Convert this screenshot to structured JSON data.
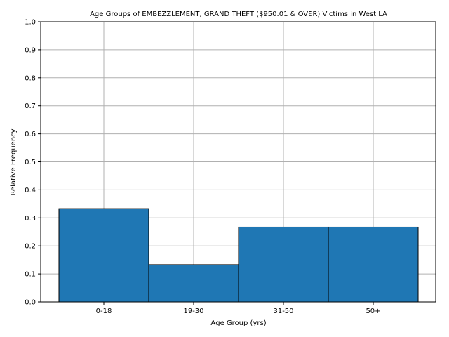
{
  "chart_data": {
    "type": "bar",
    "title": "Age Groups of EMBEZZLEMENT, GRAND THEFT ($950.01 & OVER) Victims in West LA",
    "xlabel": "Age Group (yrs)",
    "ylabel": "Relative Frequency",
    "categories": [
      "0-18",
      "19-30",
      "31-50",
      "50+"
    ],
    "values": [
      0.333,
      0.133,
      0.267,
      0.267
    ],
    "ylim": [
      0,
      1.0
    ],
    "yticks": [
      "0.0",
      "0.1",
      "0.2",
      "0.3",
      "0.4",
      "0.5",
      "0.6",
      "0.7",
      "0.8",
      "0.9",
      "1.0"
    ],
    "grid": true,
    "bar_color": "#1f77b4",
    "edge_color": "#000000"
  }
}
